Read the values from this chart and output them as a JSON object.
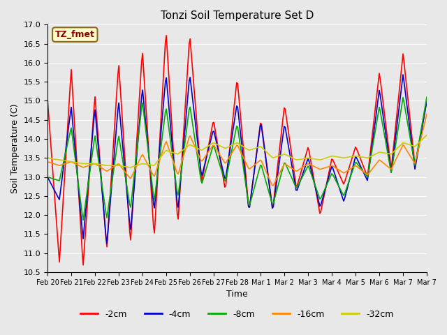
{
  "title": "Tonzi Soil Temperature Set D",
  "xlabel": "Time",
  "ylabel": "Soil Temperature (C)",
  "ylim": [
    10.5,
    17.0
  ],
  "annotation": "TZ_fmet",
  "annotation_box_color": "#ffffcc",
  "annotation_text_color": "#8b0000",
  "annotation_border_color": "#8b6914",
  "colors": {
    "-2cm": "#ff0000",
    "-4cm": "#0000cc",
    "-8cm": "#00aa00",
    "-16cm": "#ff8800",
    "-32cm": "#cccc00"
  },
  "legend_labels": [
    "-2cm",
    "-4cm",
    "-8cm",
    "-16cm",
    "-32cm"
  ],
  "background_color": "#e8e8e8",
  "grid_color": "#ffffff",
  "tick_dates": [
    "Feb 20",
    "Feb 21",
    "Feb 22",
    "Feb 23",
    "Feb 24",
    "Feb 25",
    "Feb 26",
    "Feb 27",
    "Feb 28",
    "Mar 1",
    "Mar 2",
    "Mar 3",
    "Mar 4",
    "Mar 5",
    "Mar 6",
    "Mar 7",
    "Mar 7"
  ]
}
